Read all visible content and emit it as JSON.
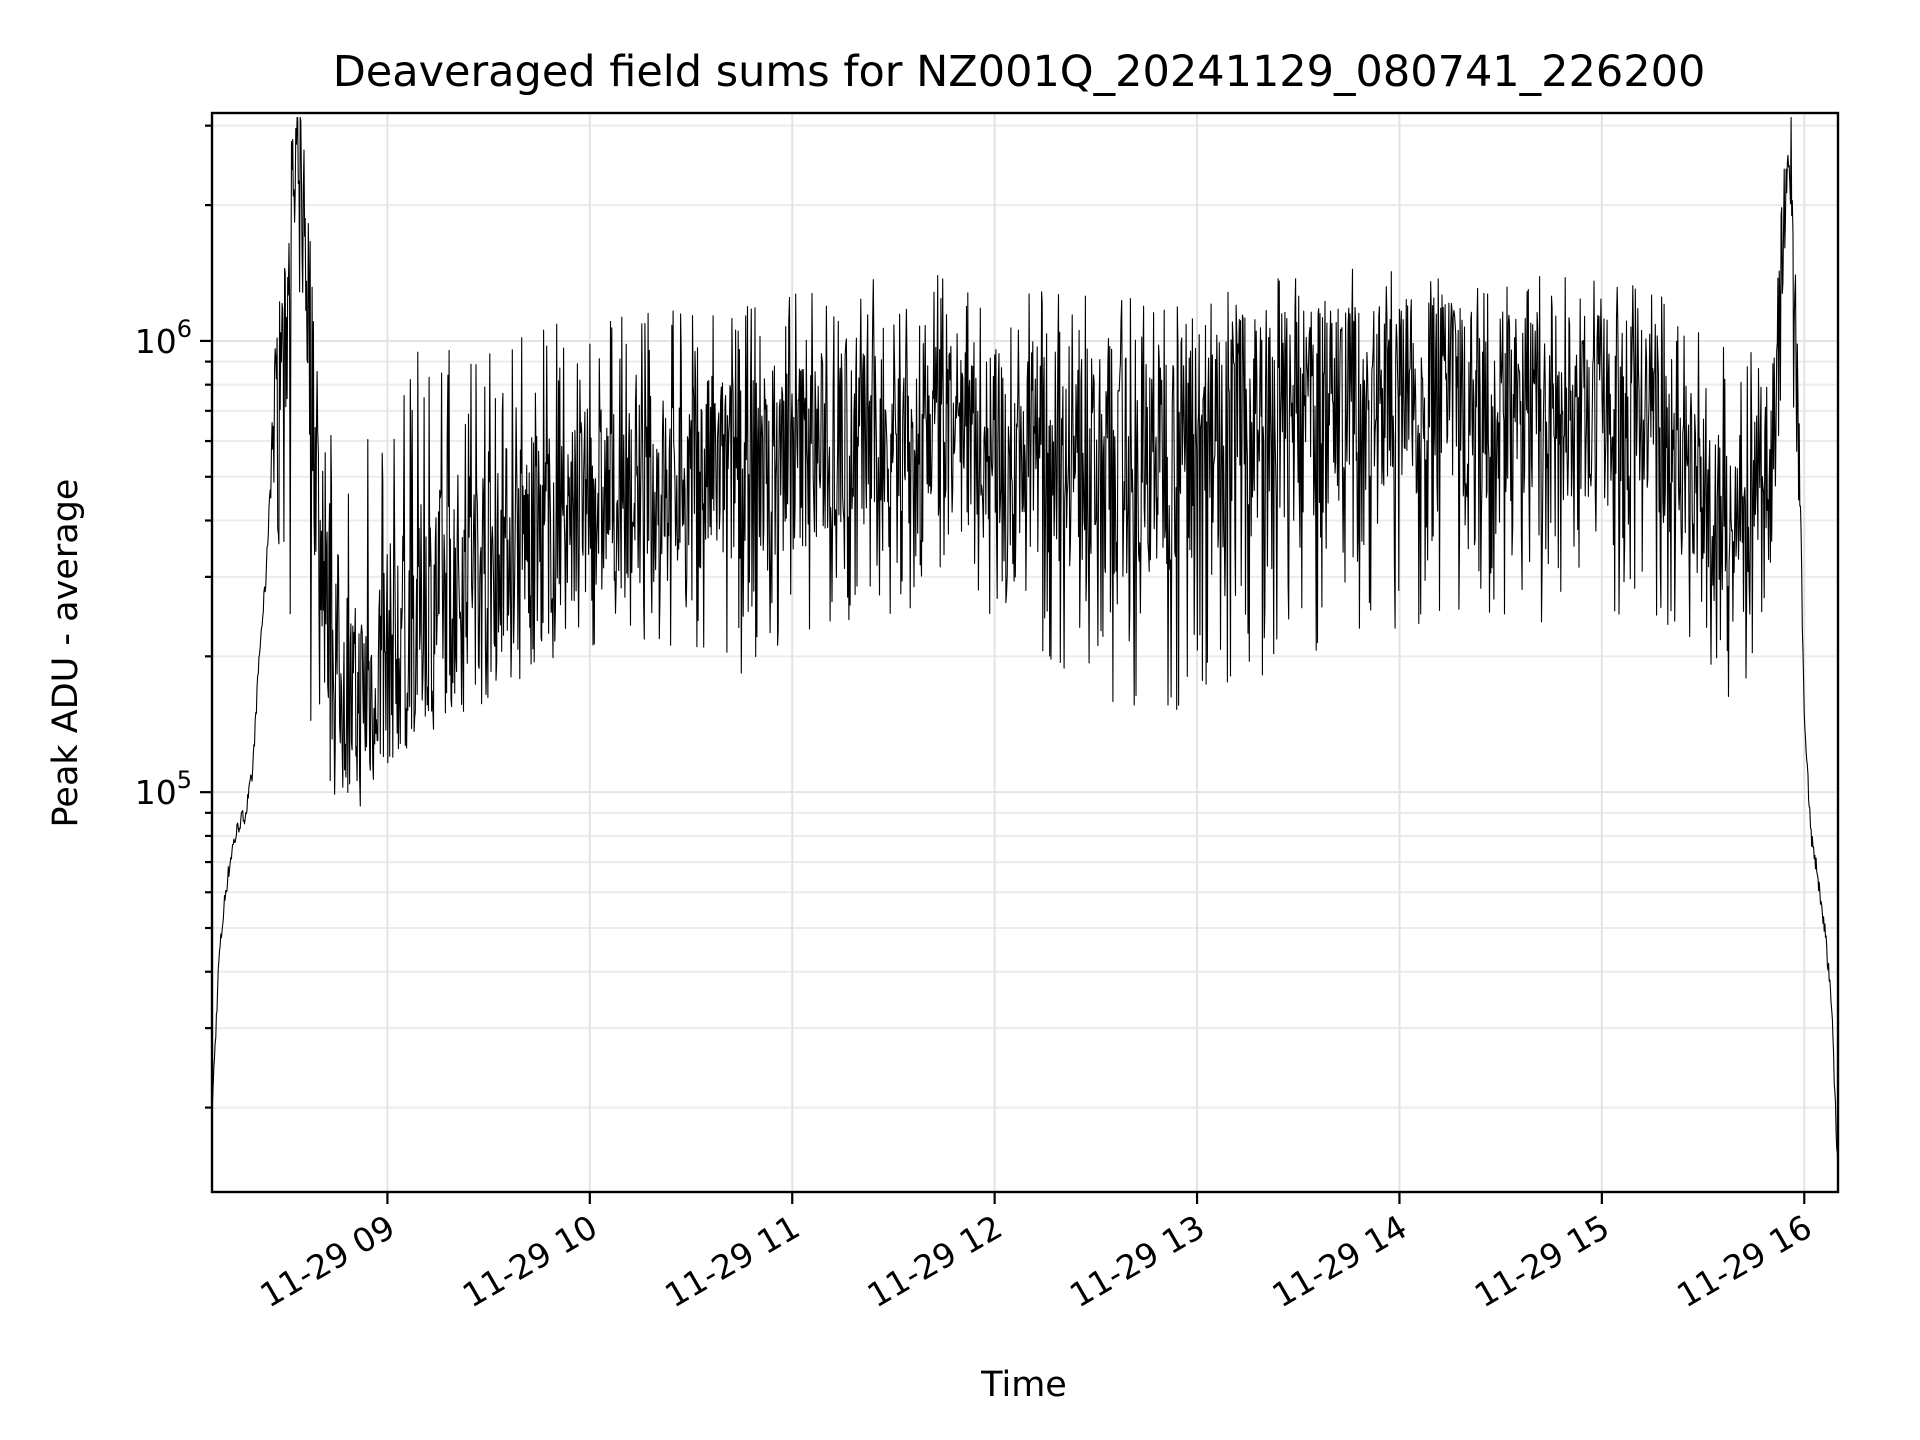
{
  "chart_data": {
    "type": "line",
    "title": "Deaveraged field sums for NZ001Q_20241129_080741_226200",
    "xlabel": "Time",
    "ylabel": "Peak ADU - average",
    "x_scale": "time",
    "y_scale": "log",
    "xlim": [
      "2024-11-29 08:08",
      "2024-11-29 16:10"
    ],
    "ylim": [
      13000,
      3200000
    ],
    "grid": "on",
    "legend": "none",
    "line_color": "#000000",
    "x_ticks": [
      {
        "value": "2024-11-29 09:00",
        "label": "11-29 09"
      },
      {
        "value": "2024-11-29 10:00",
        "label": "11-29 10"
      },
      {
        "value": "2024-11-29 11:00",
        "label": "11-29 11"
      },
      {
        "value": "2024-11-29 12:00",
        "label": "11-29 12"
      },
      {
        "value": "2024-11-29 13:00",
        "label": "11-29 13"
      },
      {
        "value": "2024-11-29 14:00",
        "label": "11-29 14"
      },
      {
        "value": "2024-11-29 15:00",
        "label": "11-29 15"
      },
      {
        "value": "2024-11-29 16:00",
        "label": "11-29 16"
      }
    ],
    "y_ticks": [
      {
        "value": 100000,
        "base": "10",
        "exp": "5"
      },
      {
        "value": 1000000,
        "base": "10",
        "exp": "6"
      }
    ],
    "series": [
      {
        "x": [
          "08:08",
          "08:09",
          "08:10",
          "08:12",
          "08:14",
          "08:16",
          "08:18",
          "08:20",
          "08:22",
          "08:24",
          "08:26",
          "08:28",
          "08:30",
          "08:31",
          "08:33",
          "08:35",
          "08:37",
          "08:39",
          "08:41",
          "08:43",
          "08:46",
          "08:50",
          "08:55",
          "09:00",
          "09:10",
          "09:20",
          "09:30",
          "09:45",
          "10:00",
          "10:15",
          "10:30",
          "10:45",
          "11:00",
          "11:15",
          "11:30",
          "11:45",
          "12:00",
          "12:15",
          "12:30",
          "12:45",
          "13:00",
          "13:15",
          "13:30",
          "13:45",
          "14:00",
          "14:15",
          "14:30",
          "14:45",
          "15:00",
          "15:15",
          "15:30",
          "15:40",
          "15:45",
          "15:50",
          "15:52",
          "15:54",
          "15:56",
          "15:58",
          "16:00",
          "16:02",
          "16:04",
          "16:06",
          "16:08",
          "16:10"
        ],
        "y": [
          20000,
          28000,
          42000,
          60000,
          75000,
          85000,
          90000,
          110000,
          200000,
          300000,
          650000,
          900000,
          1000000,
          1500000,
          2300000,
          2200000,
          1000000,
          500000,
          280000,
          220000,
          200000,
          150000,
          170000,
          200000,
          250000,
          300000,
          350000,
          380000,
          450000,
          480000,
          500000,
          520000,
          560000,
          600000,
          620000,
          620000,
          600000,
          560000,
          520000,
          540000,
          600000,
          650000,
          680000,
          720000,
          750000,
          740000,
          720000,
          720000,
          700000,
          680000,
          450000,
          380000,
          420000,
          600000,
          900000,
          2000000,
          2500000,
          800000,
          150000,
          80000,
          65000,
          50000,
          35000,
          14000
        ],
        "lower": [
          20000,
          28000,
          42000,
          60000,
          75000,
          85000,
          90000,
          110000,
          200000,
          300000,
          400000,
          350000,
          300000,
          250000,
          220000,
          180000,
          130000,
          110000,
          100000,
          95000,
          100000,
          100000,
          110000,
          110000,
          120000,
          140000,
          160000,
          180000,
          200000,
          220000,
          190000,
          180000,
          200000,
          230000,
          250000,
          260000,
          240000,
          200000,
          160000,
          140000,
          150000,
          170000,
          190000,
          210000,
          230000,
          240000,
          230000,
          220000,
          230000,
          250000,
          200000,
          150000,
          200000,
          300000,
          450000,
          700000,
          800000,
          500000,
          150000,
          80000,
          65000,
          50000,
          35000,
          14000
        ],
        "upper": [
          20000,
          28000,
          42000,
          60000,
          75000,
          85000,
          90000,
          110000,
          200000,
          300000,
          900000,
          1200000,
          1500000,
          1900000,
          2300000,
          2200000,
          1400000,
          1000000,
          700000,
          650000,
          700000,
          750000,
          800000,
          900000,
          950000,
          1000000,
          1050000,
          1100000,
          1100000,
          1150000,
          1200000,
          1250000,
          1300000,
          1350000,
          1400000,
          1400000,
          1350000,
          1300000,
          1250000,
          1250000,
          1300000,
          1350000,
          1400000,
          1450000,
          1450000,
          1450000,
          1400000,
          1400000,
          1350000,
          1350000,
          1100000,
          900000,
          1000000,
          1200000,
          1500000,
          2400000,
          2600000,
          1100000,
          150000,
          80000,
          65000,
          50000,
          35000,
          14000
        ]
      }
    ]
  }
}
